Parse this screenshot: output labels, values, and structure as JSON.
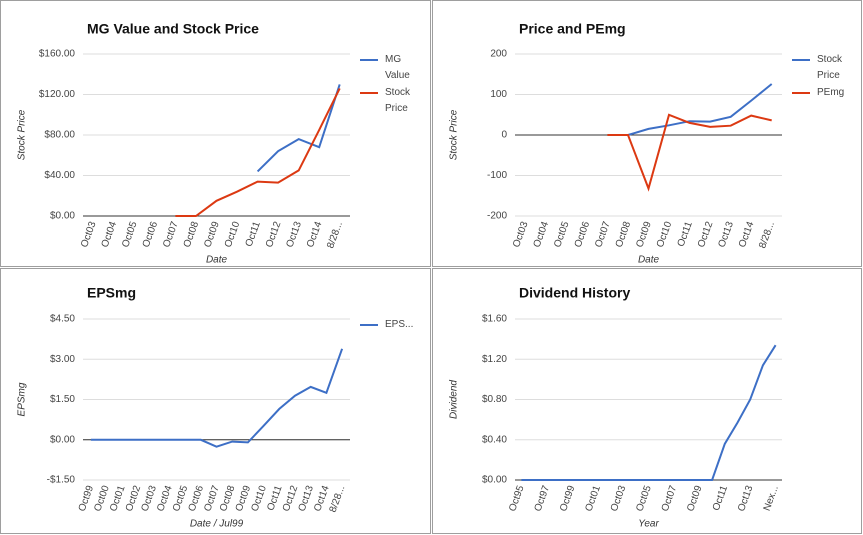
{
  "chart_data": [
    {
      "type": "line",
      "title": "MG Value and Stock Price",
      "x_label": "Date",
      "y_label": "Stock Price",
      "categories": [
        "Oct03",
        "Oct04",
        "Oct05",
        "Oct06",
        "Oct07",
        "Oct08",
        "Oct09",
        "Oct10",
        "Oct11",
        "Oct12",
        "Oct13",
        "Oct14",
        "8/28..."
      ],
      "series": [
        {
          "name": "MG Value",
          "color": "#3d6fc6",
          "values": [
            null,
            null,
            null,
            null,
            null,
            null,
            null,
            null,
            44,
            64,
            76,
            68,
            130
          ]
        },
        {
          "name": "Stock Price",
          "color": "#dc3912",
          "values": [
            null,
            null,
            null,
            null,
            0,
            0,
            15,
            24,
            34,
            33,
            45,
            85,
            126
          ]
        }
      ],
      "ylim": [
        0,
        160
      ],
      "yticks": [
        {
          "value": 0,
          "label": "$0.00"
        },
        {
          "value": 40,
          "label": "$40.00"
        },
        {
          "value": 80,
          "label": "$80.00"
        },
        {
          "value": 120,
          "label": "$120.00"
        },
        {
          "value": 160,
          "label": "$160.00"
        }
      ],
      "grid": true,
      "legend": "right"
    },
    {
      "type": "line",
      "title": "Price and PEmg",
      "x_label": "Date",
      "y_label": "Stock Price",
      "categories": [
        "Oct03",
        "Oct04",
        "Oct05",
        "Oct06",
        "Oct07",
        "Oct08",
        "Oct09",
        "Oct10",
        "Oct11",
        "Oct12",
        "Oct13",
        "Oct14",
        "8/28..."
      ],
      "series": [
        {
          "name": "Stock Price",
          "color": "#3d6fc6",
          "values": [
            null,
            null,
            null,
            null,
            null,
            0,
            15,
            24,
            34,
            33,
            45,
            85,
            126
          ]
        },
        {
          "name": "PEmg",
          "color": "#dc3912",
          "values": [
            null,
            null,
            null,
            null,
            0,
            0,
            -132,
            50,
            30,
            20,
            23,
            48,
            36
          ]
        }
      ],
      "ylim": [
        -200,
        200
      ],
      "yticks": [
        -200,
        -100,
        0,
        100,
        200
      ],
      "grid": true,
      "legend": "right"
    },
    {
      "type": "line",
      "title": "EPSmg",
      "x_label": "Date / Jul99",
      "y_label": "EPSmg",
      "categories": [
        "Oct99",
        "Oct00",
        "Oct01",
        "Oct02",
        "Oct03",
        "Oct04",
        "Oct05",
        "Oct06",
        "Oct07",
        "Oct08",
        "Oct09",
        "Oct10",
        "Oct11",
        "Oct12",
        "Oct13",
        "Oct14",
        "8/28..."
      ],
      "series": [
        {
          "name": "EPS...",
          "color": "#3d6fc6",
          "values": [
            0,
            0,
            0,
            0,
            0,
            0,
            0,
            0,
            -0.26,
            -0.07,
            -0.1,
            0.52,
            1.15,
            1.64,
            1.97,
            1.75,
            3.39
          ]
        }
      ],
      "ylim": [
        -1.5,
        4.5
      ],
      "yticks": [
        {
          "value": -1.5,
          "label": "-$1.50"
        },
        {
          "value": 0,
          "label": "$0.00"
        },
        {
          "value": 1.5,
          "label": "$1.50"
        },
        {
          "value": 3,
          "label": "$3.00"
        },
        {
          "value": 4.5,
          "label": "$4.50"
        }
      ],
      "grid": true,
      "legend": "right"
    },
    {
      "type": "line",
      "title": "Dividend History",
      "x_label": "Year",
      "y_label": "Dividend",
      "categories": [
        "Oct95",
        null,
        "Oct97",
        null,
        "Oct99",
        null,
        "Oct01",
        null,
        "Oct03",
        null,
        "Oct05",
        null,
        "Oct07",
        null,
        "Oct09",
        null,
        "Oct11",
        null,
        "Oct13",
        null,
        "Nex..."
      ],
      "series": [
        {
          "color": "#3d6fc6",
          "values": [
            0,
            0,
            0,
            0,
            0,
            0,
            0,
            0,
            0,
            0,
            0,
            0,
            0,
            0,
            0,
            0,
            0.36,
            0.57,
            0.8,
            1.14,
            1.34
          ]
        }
      ],
      "ylim": [
        0,
        1.6
      ],
      "yticks": [
        {
          "value": 0,
          "label": "$0.00"
        },
        {
          "value": 0.4,
          "label": "$0.40"
        },
        {
          "value": 0.8,
          "label": "$0.80"
        },
        {
          "value": 1.2,
          "label": "$1.20"
        },
        {
          "value": 1.6,
          "label": "$1.60"
        }
      ],
      "grid": true
    }
  ]
}
